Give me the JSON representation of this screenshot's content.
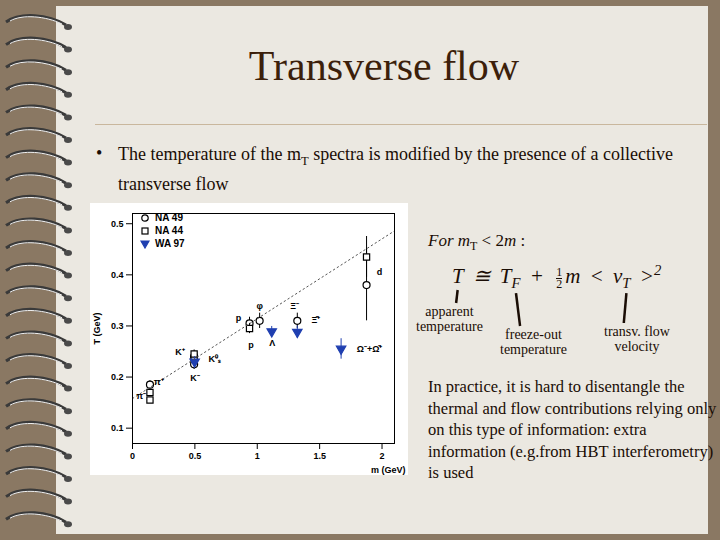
{
  "slide": {
    "title": "Transverse flow",
    "bullet": "•",
    "bullet_text": [
      {
        "t": "The temperature of the m"
      },
      {
        "sub": "T"
      },
      {
        "t": " spectra is modified by the presence of a collective transverse flow"
      }
    ],
    "condition": [
      {
        "t": "For m"
      },
      {
        "sub": "T"
      },
      {
        "t": " < 2"
      },
      {
        "t": "m"
      },
      {
        "t": " :"
      }
    ],
    "formula": [
      {
        "t": "T"
      },
      {
        "t": " ≅ "
      },
      {
        "t": "T"
      },
      {
        "sub": "F"
      },
      {
        "t": " + "
      },
      {
        "frac": [
          "1",
          "2"
        ]
      },
      {
        "t": "m < "
      },
      {
        "t": "v"
      },
      {
        "sub": "T"
      },
      {
        "t": " >"
      },
      {
        "sup": "2"
      }
    ],
    "formula_labels": [
      [
        "apparent",
        "temperature"
      ],
      [
        "freeze-out",
        "temperature"
      ],
      [
        "transv. flow",
        "velocity"
      ]
    ],
    "paragraph": "In practice, it is hard to disentangle the thermal and flow contributions relying only on this type of information: extra information (e.g.from HBT interferometry) is used"
  },
  "chart_data": {
    "type": "scatter",
    "x_label": "m (GeV)",
    "y_label": "T (GeV)",
    "xlim": [
      0,
      2.1
    ],
    "xticks": [
      0,
      0.5,
      1,
      1.5,
      2
    ],
    "ylim": [
      0.07,
      0.52
    ],
    "yticks": [
      0.1,
      0.2,
      0.3,
      0.4,
      0.5
    ],
    "grid": false,
    "legend": "top-left",
    "series": [
      {
        "name": "NA 49",
        "marker": "circle_open",
        "color": "#000000",
        "x": [
          0.14,
          0.494,
          0.494,
          0.938,
          1.019,
          1.321,
          1.876
        ],
        "values": [
          0.185,
          0.24,
          0.225,
          0.305,
          0.31,
          0.31,
          0.38
        ],
        "errors": [
          0.008,
          0.01,
          0.01,
          0.012,
          0.015,
          0.015,
          0.07
        ]
      },
      {
        "name": "NA 44",
        "marker": "square_open",
        "color": "#000000",
        "x": [
          0.14,
          0.14,
          0.494,
          0.494,
          0.938,
          1.876
        ],
        "values": [
          0.155,
          0.17,
          0.235,
          0.245,
          0.295,
          0.435
        ],
        "errors": [
          0.005,
          0.005,
          0.008,
          0.008,
          0.01,
          0.04
        ]
      },
      {
        "name": "WA 97",
        "marker": "triangle_down",
        "color": "#1f3fb0",
        "x": [
          0.498,
          1.116,
          1.321,
          1.672
        ],
        "values": [
          0.23,
          0.289,
          0.288,
          0.255
        ],
        "errors": [
          0.01,
          0.01,
          0.012,
          0.02
        ]
      },
      {
        "type": "line",
        "line_style": "dotted",
        "color": "#555555",
        "x": [
          0,
          2.1
        ],
        "values": [
          0.158,
          0.486
        ]
      }
    ],
    "annotations": [
      {
        "text": "π⁻",
        "x": 0.07,
        "y": 0.163
      },
      {
        "text": "π⁺",
        "x": 0.21,
        "y": 0.19
      },
      {
        "text": "K⁺",
        "x": 0.38,
        "y": 0.248
      },
      {
        "text": "K⁻",
        "x": 0.5,
        "y": 0.197
      },
      {
        "text": "K⁰ₛ",
        "x": 0.66,
        "y": 0.235
      },
      {
        "text": "p",
        "x": 0.85,
        "y": 0.315
      },
      {
        "text": "p",
        "x": 0.95,
        "y": 0.262
      },
      {
        "text": "φ",
        "x": 1.02,
        "y": 0.338
      },
      {
        "text": "Λ",
        "x": 1.12,
        "y": 0.266
      },
      {
        "text": "Ξ⁻",
        "x": 1.3,
        "y": 0.338
      },
      {
        "text": "Ξ̄⁺",
        "x": 1.47,
        "y": 0.312
      },
      {
        "text": "Ω⁻+Ω̄⁺",
        "x": 1.9,
        "y": 0.255
      },
      {
        "text": "d",
        "x": 1.98,
        "y": 0.405
      }
    ]
  }
}
